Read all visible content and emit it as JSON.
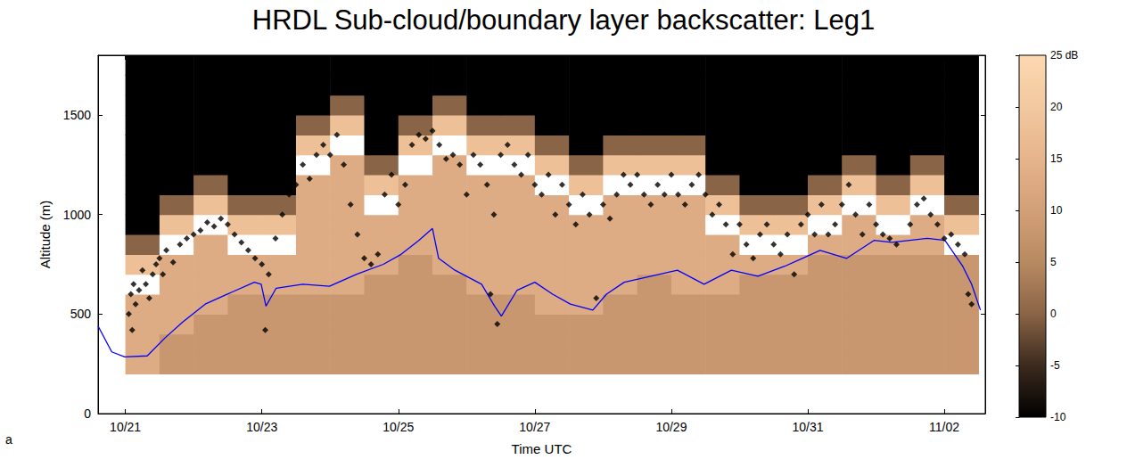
{
  "chart_data": {
    "type": "heatmap",
    "title": "HRDL Sub-cloud/boundary layer backscatter: Leg1",
    "x_label": "Time UTC",
    "y_label": "Altitude (m)",
    "panel_label": "a",
    "grid": false,
    "xlim": [
      20.6,
      33.6
    ],
    "xticks": [
      {
        "value": 21,
        "label": "10/21"
      },
      {
        "value": 23,
        "label": "10/23"
      },
      {
        "value": 25,
        "label": "10/25"
      },
      {
        "value": 27,
        "label": "10/27"
      },
      {
        "value": 29,
        "label": "10/29"
      },
      {
        "value": 31,
        "label": "10/31"
      },
      {
        "value": 33,
        "label": "11/02"
      }
    ],
    "ylim": [
      0,
      1800
    ],
    "yticks": [
      0,
      500,
      1000,
      1500
    ],
    "heatmap": {
      "x_edges": [
        21,
        21.5,
        22,
        22.5,
        23,
        23.5,
        24,
        24.5,
        25,
        25.5,
        26,
        26.5,
        27,
        27.5,
        28,
        28.5,
        29,
        29.5,
        30,
        30.5,
        31,
        31.5,
        32,
        32.5,
        33,
        33.5
      ],
      "y_edges": [
        200,
        300,
        400,
        500,
        600,
        700,
        800,
        900,
        1000,
        1100,
        1200,
        1300,
        1400,
        1500,
        1600,
        1700,
        1800
      ],
      "values": [
        [
          13,
          8,
          8,
          8,
          8,
          8,
          8,
          8,
          8,
          8,
          8,
          8,
          8,
          8,
          8,
          8,
          8,
          8,
          8,
          8,
          8,
          8,
          8,
          8,
          8
        ],
        [
          13,
          8,
          8,
          8,
          8,
          8,
          8,
          8,
          8,
          8,
          8,
          8,
          8,
          8,
          8,
          8,
          8,
          8,
          8,
          8,
          8,
          8,
          8,
          8,
          8
        ],
        [
          13,
          13,
          8,
          8,
          8,
          8,
          8,
          8,
          8,
          8,
          8,
          8,
          8,
          8,
          8,
          8,
          8,
          8,
          8,
          8,
          8,
          8,
          8,
          8,
          8
        ],
        [
          13,
          13,
          13,
          8,
          8,
          8,
          8,
          8,
          8,
          8,
          8,
          8,
          13,
          13,
          8,
          8,
          8,
          8,
          8,
          8,
          8,
          8,
          8,
          8,
          8
        ],
        [
          28,
          13,
          13,
          13,
          13,
          13,
          13,
          8,
          8,
          8,
          13,
          13,
          13,
          13,
          13,
          8,
          13,
          13,
          8,
          8,
          8,
          8,
          8,
          8,
          8
        ],
        [
          18,
          13,
          13,
          13,
          13,
          13,
          13,
          13,
          8,
          13,
          13,
          13,
          13,
          13,
          13,
          13,
          13,
          13,
          13,
          13,
          8,
          8,
          8,
          8,
          8
        ],
        [
          0,
          28,
          13,
          28,
          28,
          13,
          13,
          13,
          13,
          13,
          13,
          13,
          13,
          13,
          13,
          13,
          13,
          13,
          28,
          28,
          13,
          13,
          13,
          13,
          28
        ],
        [
          -10,
          18,
          28,
          18,
          18,
          13,
          13,
          13,
          13,
          13,
          13,
          13,
          13,
          13,
          13,
          13,
          13,
          28,
          18,
          18,
          28,
          13,
          28,
          13,
          18
        ],
        [
          -10,
          0,
          18,
          0,
          0,
          13,
          13,
          28,
          13,
          13,
          13,
          13,
          13,
          28,
          13,
          13,
          13,
          18,
          0,
          0,
          18,
          28,
          18,
          28,
          0
        ],
        [
          -10,
          -10,
          0,
          -10,
          -10,
          13,
          13,
          18,
          13,
          13,
          13,
          13,
          28,
          18,
          28,
          28,
          28,
          0,
          -10,
          -10,
          0,
          18,
          0,
          18,
          -10
        ],
        [
          -10,
          -10,
          -10,
          -10,
          -10,
          28,
          13,
          0,
          28,
          13,
          28,
          28,
          18,
          0,
          18,
          18,
          18,
          -10,
          -10,
          -10,
          -10,
          0,
          -10,
          0,
          -10
        ],
        [
          -10,
          -10,
          -10,
          -10,
          -10,
          18,
          28,
          -10,
          18,
          28,
          18,
          18,
          0,
          -10,
          0,
          0,
          0,
          -10,
          -10,
          -10,
          -10,
          -10,
          -10,
          -10,
          -10
        ],
        [
          -10,
          -10,
          -10,
          -10,
          -10,
          0,
          18,
          -10,
          0,
          18,
          0,
          0,
          -10,
          -10,
          -10,
          -10,
          -10,
          -10,
          -10,
          -10,
          -10,
          -10,
          -10,
          -10,
          -10
        ],
        [
          -10,
          -10,
          -10,
          -10,
          -10,
          -10,
          0,
          -10,
          -10,
          0,
          -10,
          -10,
          -10,
          -10,
          -10,
          -10,
          -10,
          -10,
          -10,
          -10,
          -10,
          -10,
          -10,
          -10,
          -10
        ],
        [
          -10,
          -10,
          -10,
          -10,
          -10,
          -10,
          -10,
          -10,
          -10,
          -10,
          -10,
          -10,
          -10,
          -10,
          -10,
          -10,
          -10,
          -10,
          -10,
          -10,
          -10,
          -10,
          -10,
          -10,
          -10
        ],
        [
          -10,
          -10,
          -10,
          -10,
          -10,
          -10,
          -10,
          -10,
          -10,
          -10,
          -10,
          -10,
          -10,
          -10,
          -10,
          -10,
          -10,
          -10,
          -10,
          -10,
          -10,
          -10,
          -10,
          -10,
          -10
        ]
      ]
    },
    "colorbar": {
      "lim": [
        -10,
        25
      ],
      "ticks": [
        -10,
        -5,
        0,
        5,
        10,
        15,
        20,
        {
          "value": 25,
          "label": "25 dB"
        }
      ],
      "colors": [
        "#000000",
        "#3c2a1e",
        "#8a6446",
        "#b88a62",
        "#d2a078",
        "#e6b48c",
        "#f2c8a0",
        "#fcd8b0"
      ],
      "over_color": "#ffffff"
    },
    "series": [
      {
        "type": "scatter",
        "color": "#000000",
        "marker": "diamond",
        "x": [
          21.05,
          21.08,
          21.1,
          21.12,
          21.15,
          21.2,
          21.25,
          21.3,
          21.35,
          21.4,
          21.45,
          21.5,
          21.55,
          21.6,
          21.7,
          21.8,
          21.9,
          22.0,
          22.1,
          22.2,
          22.3,
          22.4,
          22.5,
          22.6,
          22.7,
          22.8,
          22.9,
          23.0,
          23.05,
          23.1,
          23.2,
          23.3,
          23.4,
          23.5,
          23.6,
          23.7,
          23.8,
          23.9,
          24.0,
          24.1,
          24.2,
          24.3,
          24.4,
          24.5,
          24.6,
          24.7,
          24.8,
          24.9,
          25.0,
          25.1,
          25.2,
          25.3,
          25.4,
          25.5,
          25.6,
          25.7,
          25.8,
          25.9,
          26.0,
          26.1,
          26.2,
          26.3,
          26.35,
          26.4,
          26.45,
          26.5,
          26.6,
          26.7,
          26.8,
          26.9,
          27.0,
          27.1,
          27.2,
          27.3,
          27.4,
          27.5,
          27.6,
          27.7,
          27.8,
          27.9,
          28.0,
          28.1,
          28.2,
          28.3,
          28.4,
          28.5,
          28.6,
          28.7,
          28.8,
          28.9,
          29.0,
          29.1,
          29.2,
          29.3,
          29.4,
          29.5,
          29.6,
          29.7,
          29.8,
          29.9,
          30.0,
          30.1,
          30.2,
          30.3,
          30.4,
          30.5,
          30.6,
          30.7,
          30.8,
          30.9,
          31.0,
          31.1,
          31.2,
          31.3,
          31.4,
          31.5,
          31.6,
          31.7,
          31.8,
          31.9,
          32.0,
          32.1,
          32.2,
          32.3,
          32.5,
          32.6,
          32.7,
          32.8,
          32.9,
          33.0,
          33.1,
          33.2,
          33.3,
          33.35,
          33.4
        ],
        "values": [
          500,
          600,
          420,
          650,
          550,
          620,
          720,
          650,
          580,
          700,
          750,
          780,
          700,
          820,
          760,
          850,
          880,
          900,
          920,
          960,
          940,
          980,
          950,
          900,
          860,
          820,
          780,
          750,
          420,
          700,
          880,
          1000,
          1100,
          1150,
          1250,
          1180,
          1300,
          1350,
          1300,
          1400,
          1250,
          1050,
          900,
          780,
          750,
          800,
          1100,
          1200,
          1050,
          1150,
          1350,
          1400,
          1380,
          1420,
          1350,
          1280,
          1300,
          1250,
          1100,
          1300,
          1250,
          1150,
          600,
          1000,
          450,
          1300,
          1350,
          1250,
          1200,
          1300,
          1150,
          1100,
          1200,
          1000,
          1150,
          1050,
          950,
          1100,
          1000,
          580,
          1050,
          980,
          1100,
          1200,
          1150,
          1200,
          1100,
          1050,
          1150,
          1100,
          1200,
          1100,
          1050,
          1150,
          1200,
          1100,
          1000,
          1050,
          950,
          800,
          950,
          850,
          780,
          900,
          950,
          850,
          800,
          900,
          700,
          950,
          1000,
          900,
          1050,
          900,
          950,
          1050,
          1150,
          1000,
          900,
          1050,
          950,
          900,
          880,
          850,
          950,
          1050,
          1080,
          1000,
          950,
          880,
          900,
          850,
          800,
          600,
          550
        ]
      },
      {
        "type": "line",
        "color": "#0000ff",
        "line_style": "solid",
        "x": [
          20.6,
          20.8,
          20.99,
          21.32,
          21.58,
          21.84,
          22.17,
          22.56,
          22.89,
          22.99,
          23.06,
          23.21,
          23.6,
          23.99,
          24.39,
          24.78,
          25.04,
          25.3,
          25.5,
          25.59,
          25.83,
          26.22,
          26.41,
          26.51,
          26.74,
          27.0,
          27.26,
          27.52,
          27.85,
          28.05,
          28.31,
          28.7,
          29.09,
          29.48,
          29.88,
          30.27,
          30.66,
          30.92,
          31.18,
          31.57,
          31.97,
          32.23,
          32.75,
          33.01,
          33.27,
          33.4,
          33.53
        ],
        "values": [
          440,
          310,
          285,
          290,
          380,
          460,
          550,
          610,
          660,
          650,
          540,
          630,
          650,
          640,
          700,
          750,
          800,
          870,
          930,
          780,
          720,
          650,
          540,
          490,
          620,
          660,
          600,
          550,
          520,
          600,
          660,
          690,
          720,
          650,
          720,
          690,
          740,
          780,
          820,
          780,
          870,
          860,
          880,
          870,
          740,
          650,
          520
        ]
      }
    ]
  }
}
